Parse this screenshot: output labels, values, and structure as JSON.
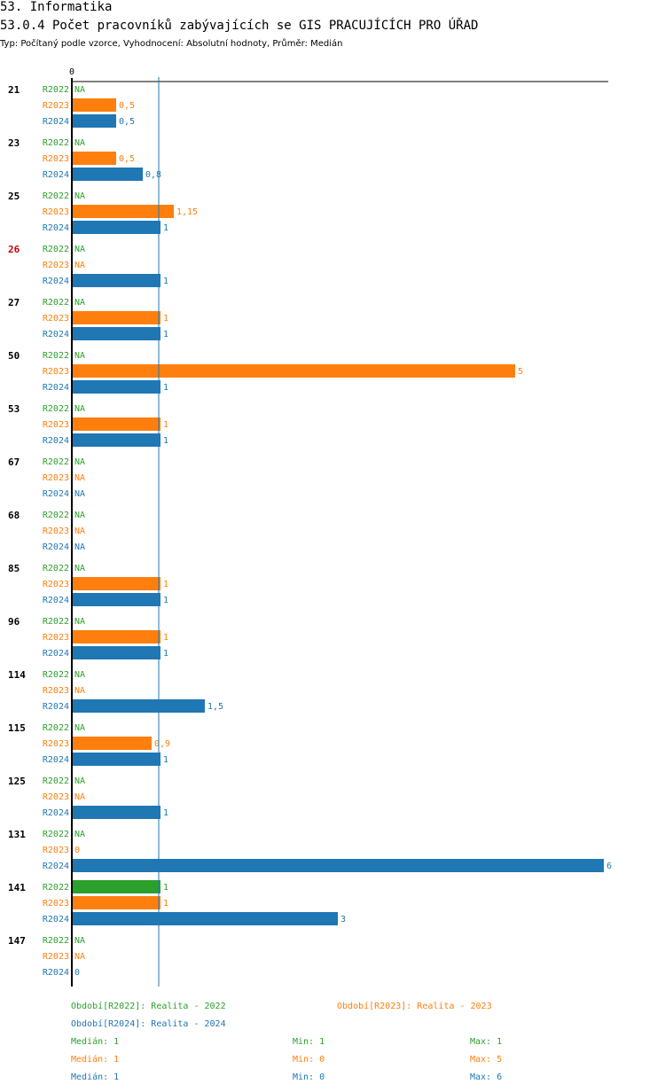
{
  "header": {
    "section_title": "53. Informatika",
    "chart_title": "53.0.4 Počet pracovníků zabývajících se GIS PRACUJÍCÍCH PRO ÚŘAD",
    "subtitle": "Typ: Počítaný podle vzorce, Vyhodnocení: Absolutní hodnoty, Průměr: Medián"
  },
  "colors": {
    "R2022": "#2ca02c",
    "R2023": "#ff7f0e",
    "R2024": "#1f77b4",
    "highlight": "#cc0000",
    "median_line": "#1f77b4"
  },
  "chart_data": {
    "type": "bar",
    "orientation": "horizontal",
    "title": "53.0.4 Počet pracovníků zabývajících se GIS PRACUJÍCÍCH PRO ÚŘAD",
    "axis_zero_label": "0",
    "xlim": [
      0,
      6
    ],
    "median_reference": 1,
    "na_label": "NA",
    "series_names": [
      "R2022",
      "R2023",
      "R2024"
    ],
    "groups": [
      {
        "label": "21",
        "highlight": false,
        "values": [
          null,
          0.5,
          0.5
        ],
        "labels": [
          "NA",
          "0,5",
          "0,5"
        ]
      },
      {
        "label": "23",
        "highlight": false,
        "values": [
          null,
          0.5,
          0.8
        ],
        "labels": [
          "NA",
          "0,5",
          "0,8"
        ]
      },
      {
        "label": "25",
        "highlight": false,
        "values": [
          null,
          1.15,
          1
        ],
        "labels": [
          "NA",
          "1,15",
          "1"
        ]
      },
      {
        "label": "26",
        "highlight": true,
        "values": [
          null,
          null,
          1
        ],
        "labels": [
          "NA",
          "NA",
          "1"
        ]
      },
      {
        "label": "27",
        "highlight": false,
        "values": [
          null,
          1,
          1
        ],
        "labels": [
          "NA",
          "1",
          "1"
        ]
      },
      {
        "label": "50",
        "highlight": false,
        "values": [
          null,
          5,
          1
        ],
        "labels": [
          "NA",
          "5",
          "1"
        ]
      },
      {
        "label": "53",
        "highlight": false,
        "values": [
          null,
          1,
          1
        ],
        "labels": [
          "NA",
          "1",
          "1"
        ]
      },
      {
        "label": "67",
        "highlight": false,
        "values": [
          null,
          null,
          null
        ],
        "labels": [
          "NA",
          "NA",
          "NA"
        ]
      },
      {
        "label": "68",
        "highlight": false,
        "values": [
          null,
          null,
          null
        ],
        "labels": [
          "NA",
          "NA",
          "NA"
        ]
      },
      {
        "label": "85",
        "highlight": false,
        "values": [
          null,
          1,
          1
        ],
        "labels": [
          "NA",
          "1",
          "1"
        ]
      },
      {
        "label": "96",
        "highlight": false,
        "values": [
          null,
          1,
          1
        ],
        "labels": [
          "NA",
          "1",
          "1"
        ]
      },
      {
        "label": "114",
        "highlight": false,
        "values": [
          null,
          null,
          1.5
        ],
        "labels": [
          "NA",
          "NA",
          "1,5"
        ]
      },
      {
        "label": "115",
        "highlight": false,
        "values": [
          null,
          0.9,
          1
        ],
        "labels": [
          "NA",
          "0,9",
          "1"
        ]
      },
      {
        "label": "125",
        "highlight": false,
        "values": [
          null,
          null,
          1
        ],
        "labels": [
          "NA",
          "NA",
          "1"
        ]
      },
      {
        "label": "131",
        "highlight": false,
        "values": [
          null,
          0,
          6
        ],
        "labels": [
          "NA",
          "0",
          "6"
        ]
      },
      {
        "label": "141",
        "highlight": false,
        "values": [
          1,
          1,
          3
        ],
        "labels": [
          "1",
          "1",
          "3"
        ]
      },
      {
        "label": "147",
        "highlight": false,
        "values": [
          null,
          null,
          0
        ],
        "labels": [
          "NA",
          "NA",
          "0"
        ]
      }
    ],
    "legend": [
      {
        "text": "Období[R2022]: Realita - 2022",
        "series": "R2022"
      },
      {
        "text": "Období[R2023]: Realita - 2023",
        "series": "R2023"
      },
      {
        "text": "Období[R2024]: Realita - 2024",
        "series": "R2024"
      }
    ],
    "stats": [
      {
        "series": "R2022",
        "median": "Medián: 1",
        "min": "Min: 1",
        "max": "Max: 1"
      },
      {
        "series": "R2023",
        "median": "Medián: 1",
        "min": "Min: 0",
        "max": "Max: 5"
      },
      {
        "series": "R2024",
        "median": "Medián: 1",
        "min": "Min: 0",
        "max": "Max: 6"
      }
    ]
  }
}
